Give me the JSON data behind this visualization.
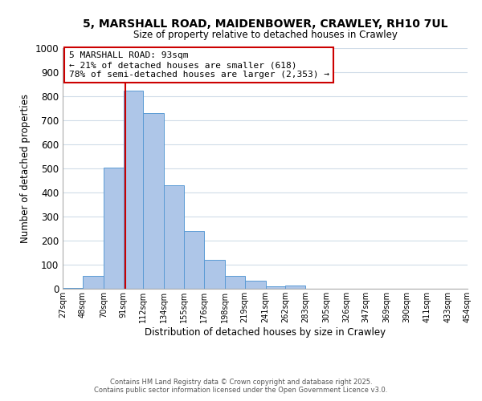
{
  "title": "5, MARSHALL ROAD, MAIDENBOWER, CRAWLEY, RH10 7UL",
  "subtitle": "Size of property relative to detached houses in Crawley",
  "xlabel": "Distribution of detached houses by size in Crawley",
  "ylabel": "Number of detached properties",
  "bar_edges": [
    27,
    48,
    70,
    91,
    112,
    134,
    155,
    176,
    198,
    219,
    241,
    262,
    283,
    305,
    326,
    347,
    369,
    390,
    411,
    433,
    454
  ],
  "bar_heights": [
    5,
    55,
    505,
    825,
    730,
    430,
    240,
    120,
    55,
    35,
    10,
    15,
    0,
    0,
    0,
    0,
    0,
    0,
    0,
    0
  ],
  "bar_color": "#aec6e8",
  "bar_edge_color": "#5b9bd5",
  "vline_x": 93,
  "vline_color": "#cc0000",
  "ylim": [
    0,
    1000
  ],
  "annotation_text": "5 MARSHALL ROAD: 93sqm\n← 21% of detached houses are smaller (618)\n78% of semi-detached houses are larger (2,353) →",
  "annotation_box_color": "#ffffff",
  "annotation_box_edge": "#cc0000",
  "tick_labels": [
    "27sqm",
    "48sqm",
    "70sqm",
    "91sqm",
    "112sqm",
    "134sqm",
    "155sqm",
    "176sqm",
    "198sqm",
    "219sqm",
    "241sqm",
    "262sqm",
    "283sqm",
    "305sqm",
    "326sqm",
    "347sqm",
    "369sqm",
    "390sqm",
    "411sqm",
    "433sqm",
    "454sqm"
  ],
  "footer1": "Contains HM Land Registry data © Crown copyright and database right 2025.",
  "footer2": "Contains public sector information licensed under the Open Government Licence v3.0.",
  "background_color": "#ffffff",
  "grid_color": "#d0dce8",
  "yticks": [
    0,
    100,
    200,
    300,
    400,
    500,
    600,
    700,
    800,
    900,
    1000
  ]
}
